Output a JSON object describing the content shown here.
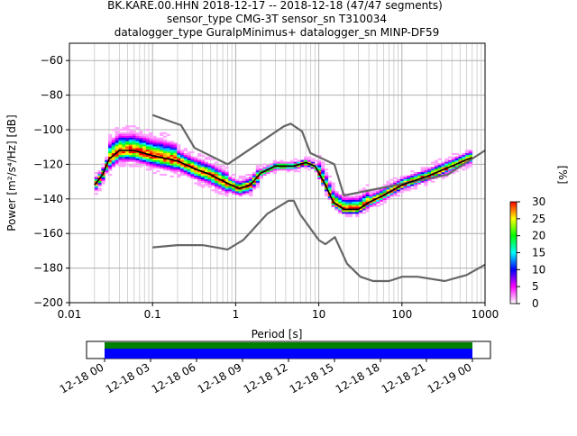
{
  "title_lines": [
    "BK.KARE.00.HHN   2018-12-17 -- 2018-12-18  (47/47 segments)",
    "sensor_type CMG-3T sensor_sn T310034",
    "datalogger_type GuralpMinimus+ datalogger_sn MINP-DF59"
  ],
  "chart_data": [
    {
      "type": "heatmap",
      "subtype": "probabilistic power spectral density",
      "xlabel": "Period [s]",
      "ylabel": "Power [m²/s⁴/Hz] [dB]",
      "xscale": "log",
      "xlim": [
        0.01,
        1000
      ],
      "ylim": [
        -200,
        -50
      ],
      "x_ticks": [
        0.01,
        0.1,
        1,
        10,
        100,
        1000
      ],
      "x_tick_labels": [
        "0.01",
        "0.1",
        "1",
        "10",
        "100",
        "1000"
      ],
      "y_ticks": [
        -200,
        -180,
        -160,
        -140,
        -120,
        -100,
        -80,
        -60
      ],
      "y_tick_labels": [
        "−200",
        "−180",
        "−160",
        "−140",
        "−120",
        "−100",
        "−80",
        "−60"
      ],
      "grid": true,
      "mode_line": {
        "color": "#000000",
        "points": [
          [
            0.02,
            -132
          ],
          [
            0.025,
            -126
          ],
          [
            0.03,
            -117
          ],
          [
            0.04,
            -112
          ],
          [
            0.06,
            -112
          ],
          [
            0.1,
            -115
          ],
          [
            0.2,
            -118
          ],
          [
            0.3,
            -122
          ],
          [
            0.5,
            -126
          ],
          [
            0.8,
            -131
          ],
          [
            1.1,
            -134
          ],
          [
            1.5,
            -132
          ],
          [
            2,
            -125
          ],
          [
            3,
            -121
          ],
          [
            5,
            -121
          ],
          [
            7,
            -119
          ],
          [
            9,
            -121
          ],
          [
            12,
            -132
          ],
          [
            15,
            -142
          ],
          [
            20,
            -146
          ],
          [
            30,
            -146
          ],
          [
            40,
            -142
          ],
          [
            60,
            -138
          ],
          [
            100,
            -132
          ],
          [
            200,
            -127
          ],
          [
            400,
            -121
          ],
          [
            700,
            -116
          ]
        ]
      },
      "noise_models": [
        {
          "name": "NHNM",
          "color": "#666666",
          "points": [
            [
              0.1,
              -91.5
            ],
            [
              0.22,
              -97.4
            ],
            [
              0.32,
              -110.5
            ],
            [
              0.8,
              -120
            ],
            [
              3.8,
              -98
            ],
            [
              4.6,
              -96.5
            ],
            [
              6.3,
              -101
            ],
            [
              7.9,
              -113.5
            ],
            [
              15.4,
              -120
            ],
            [
              20,
              -138
            ],
            [
              354.8,
              -126
            ],
            [
              1000,
              -112
            ]
          ]
        },
        {
          "name": "NLNM",
          "color": "#666666",
          "points": [
            [
              0.1,
              -168
            ],
            [
              0.2,
              -166.7
            ],
            [
              0.4,
              -166.7
            ],
            [
              0.8,
              -169.2
            ],
            [
              1.24,
              -163.7
            ],
            [
              2.4,
              -148.6
            ],
            [
              4.3,
              -141.1
            ],
            [
              5,
              -141.1
            ],
            [
              6,
              -149
            ],
            [
              10,
              -163.8
            ],
            [
              12,
              -166.2
            ],
            [
              15.6,
              -162.1
            ],
            [
              21.9,
              -177.5
            ],
            [
              31.6,
              -185
            ],
            [
              45,
              -187.5
            ],
            [
              70,
              -187.5
            ],
            [
              101,
              -185
            ],
            [
              154,
              -185
            ],
            [
              328,
              -187.5
            ],
            [
              600,
              -184
            ],
            [
              1000,
              -178
            ]
          ]
        }
      ],
      "colorbar": {
        "label": "[%]",
        "ticks": [
          0,
          5,
          10,
          15,
          20,
          25,
          30
        ],
        "range": [
          0,
          30
        ],
        "colors": [
          "#ffffff",
          "#ff00ff",
          "#0000ff",
          "#00ffff",
          "#00ff00",
          "#ffff00",
          "#ff0000"
        ]
      }
    },
    {
      "type": "timeline",
      "tick_labels": [
        "12-18 00",
        "12-18 03",
        "12-18 06",
        "12-18 09",
        "12-18 12",
        "12-18 15",
        "12-18 18",
        "12-18 21",
        "12-19 00"
      ],
      "coverage_colors": [
        "#008000",
        "#0000ff"
      ]
    }
  ]
}
